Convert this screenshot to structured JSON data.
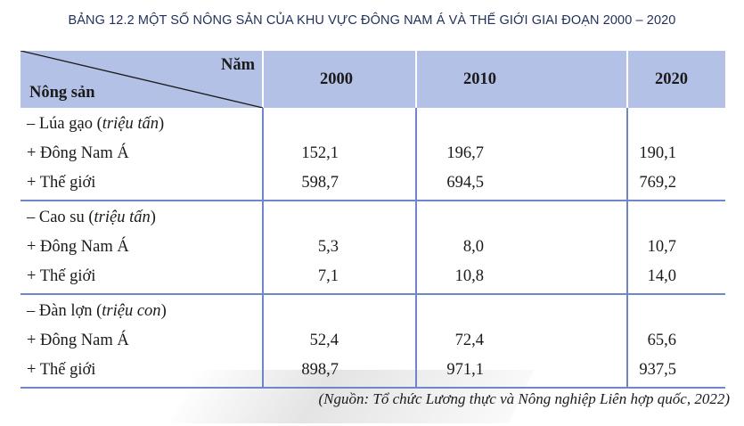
{
  "title": "BẢNG 12.2  MỘT SỐ NÔNG SẢN CỦA KHU VỰC ĐÔNG NAM Á VÀ THẾ GIỚI GIAI ĐOẠN 2000 – 2020",
  "table": {
    "corner_top": "Năm",
    "corner_bottom": "Nông sản",
    "years": [
      "2000",
      "2010",
      "2020"
    ],
    "groups": [
      {
        "name": "– Lúa gạo (",
        "unit": "triệu tấn",
        "close": ")",
        "rows": [
          {
            "label": "+ Đông Nam Á",
            "values": [
              "152,1",
              "196,7",
              "190,1"
            ]
          },
          {
            "label": "+ Thế giới",
            "values": [
              "598,7",
              "694,5",
              "769,2"
            ]
          }
        ]
      },
      {
        "name": "– Cao su (",
        "unit": "triệu tấn",
        "close": ")",
        "rows": [
          {
            "label": "+ Đông Nam Á",
            "values": [
              "5,3",
              "8,0",
              "10,7"
            ]
          },
          {
            "label": "+ Thế giới",
            "values": [
              "7,1",
              "10,8",
              "14,0"
            ]
          }
        ]
      },
      {
        "name": "– Đàn lợn (",
        "unit": "triệu con",
        "close": ")",
        "rows": [
          {
            "label": "+ Đông Nam Á",
            "values": [
              "52,4",
              "72,4",
              "65,6"
            ]
          },
          {
            "label": "+ Thế giới",
            "values": [
              "898,7",
              "971,1",
              "937,5"
            ]
          }
        ]
      }
    ]
  },
  "source": "(Nguồn: Tổ chức Lương thực và Nông nghiệp Liên hợp quốc, 2022)"
}
